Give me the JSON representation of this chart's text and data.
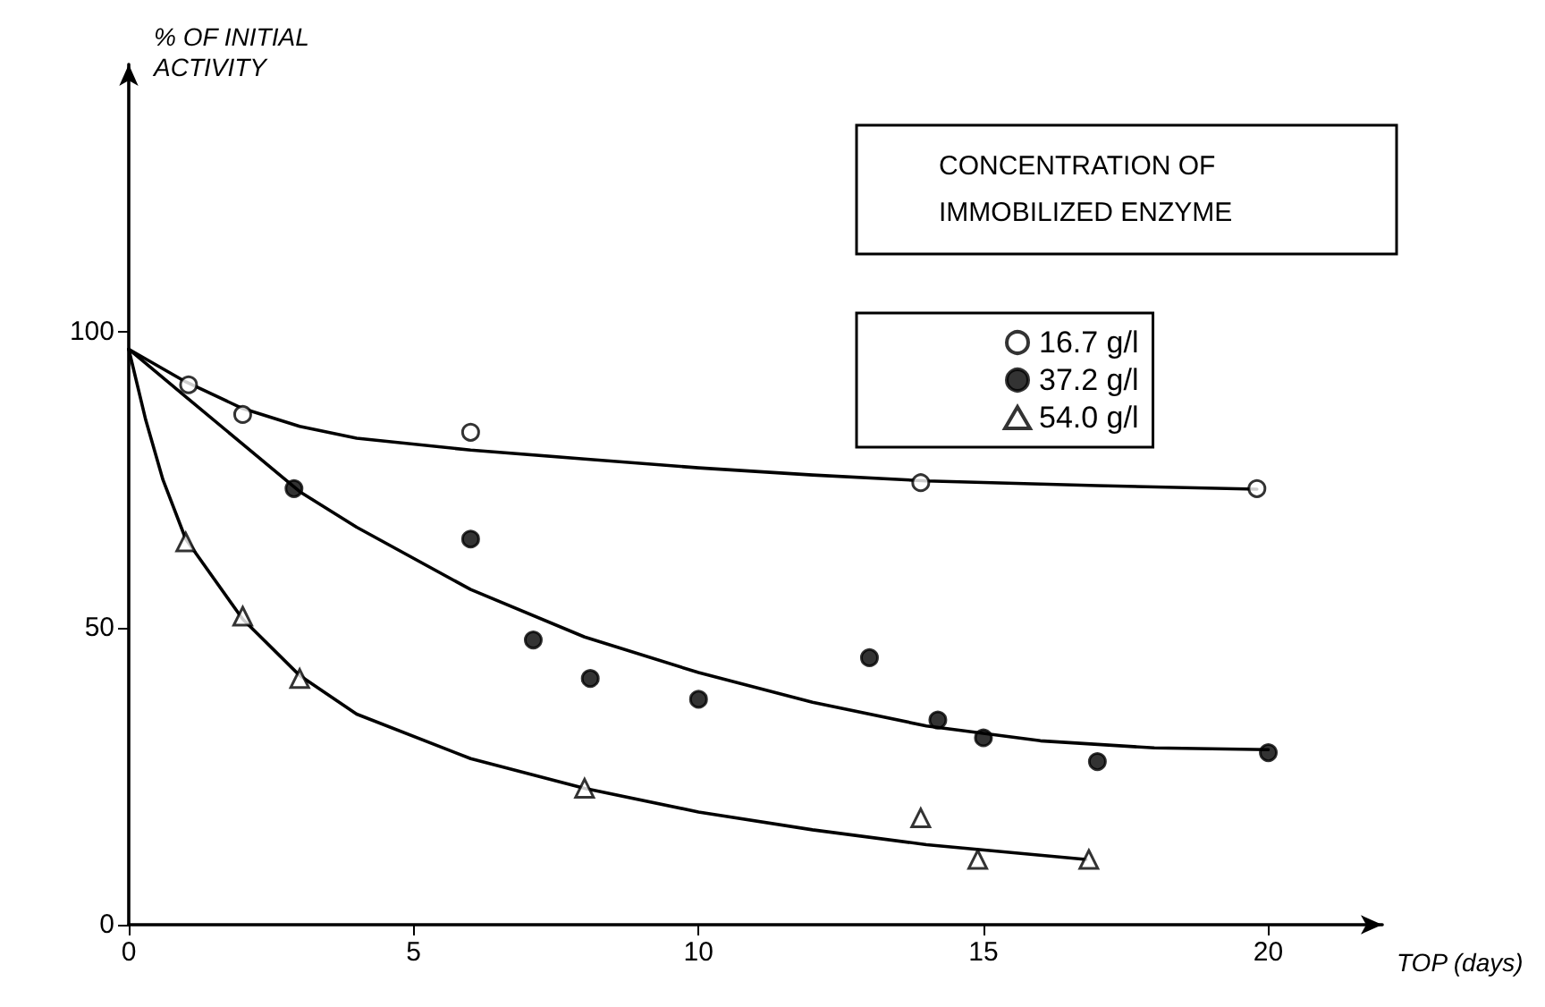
{
  "chart_data": {
    "type": "scatter",
    "xlabel": "TOP (days)",
    "ylabel": "% OF INITIAL ACTIVITY",
    "legend_title": "CONCENTRATION OF IMMOBILIZED ENZYME",
    "legend": "top right",
    "grid": false,
    "xlim": [
      0,
      22
    ],
    "xticks": [
      0,
      5,
      10,
      15,
      20
    ],
    "ylim": [
      0,
      145
    ],
    "yticks": [
      0,
      50,
      100
    ],
    "series": [
      {
        "name": "16.7 g/l",
        "color": "#000000",
        "marker": "circle-open",
        "x": [
          1.05,
          2.0,
          6.0,
          13.9,
          19.8
        ],
        "values": [
          91,
          86,
          83,
          74.5,
          73.5
        ]
      },
      {
        "name": "37.2 g/l",
        "color": "#000000",
        "marker": "circle",
        "x": [
          2.9,
          6.0,
          7.1,
          8.1,
          10.0,
          13.0,
          14.2,
          15.0,
          17.0,
          20.0
        ],
        "values": [
          73.5,
          65,
          48,
          41.5,
          38,
          45,
          34.5,
          31.5,
          27.5,
          29
        ]
      },
      {
        "name": "54.0 g/l",
        "color": "#000000",
        "marker": "triangle-open",
        "x": [
          1.0,
          2.0,
          3.0,
          8.0,
          13.9,
          14.9,
          16.85
        ],
        "values": [
          64.5,
          52,
          41.5,
          23,
          18,
          11,
          11
        ]
      },
      {
        "type": "line",
        "color": "#000000",
        "marker": "none",
        "line_style": "solid",
        "x": [
          0,
          1,
          2,
          3,
          4,
          6,
          8,
          10,
          12,
          14,
          17,
          19.8
        ],
        "values": [
          97,
          91.5,
          87,
          84,
          82,
          80,
          78.5,
          77,
          75.8,
          74.8,
          74,
          73.4
        ]
      },
      {
        "type": "line",
        "color": "#000000",
        "marker": "none",
        "line_style": "solid",
        "x": [
          0,
          1,
          2,
          3,
          4,
          6,
          8,
          10,
          12,
          14,
          16,
          18,
          20
        ],
        "values": [
          97,
          89,
          81,
          73,
          67,
          56.5,
          48.5,
          42.5,
          37.5,
          33.5,
          31,
          29.8,
          29.5
        ]
      },
      {
        "type": "line",
        "color": "#000000",
        "marker": "none",
        "line_style": "solid",
        "x": [
          0,
          0.3,
          0.6,
          1,
          2,
          3,
          4,
          6,
          8,
          10,
          12,
          14,
          16.8
        ],
        "values": [
          97,
          85,
          75,
          65,
          51.5,
          42,
          35.5,
          28,
          23,
          19,
          16,
          13.5,
          11
        ]
      }
    ]
  }
}
